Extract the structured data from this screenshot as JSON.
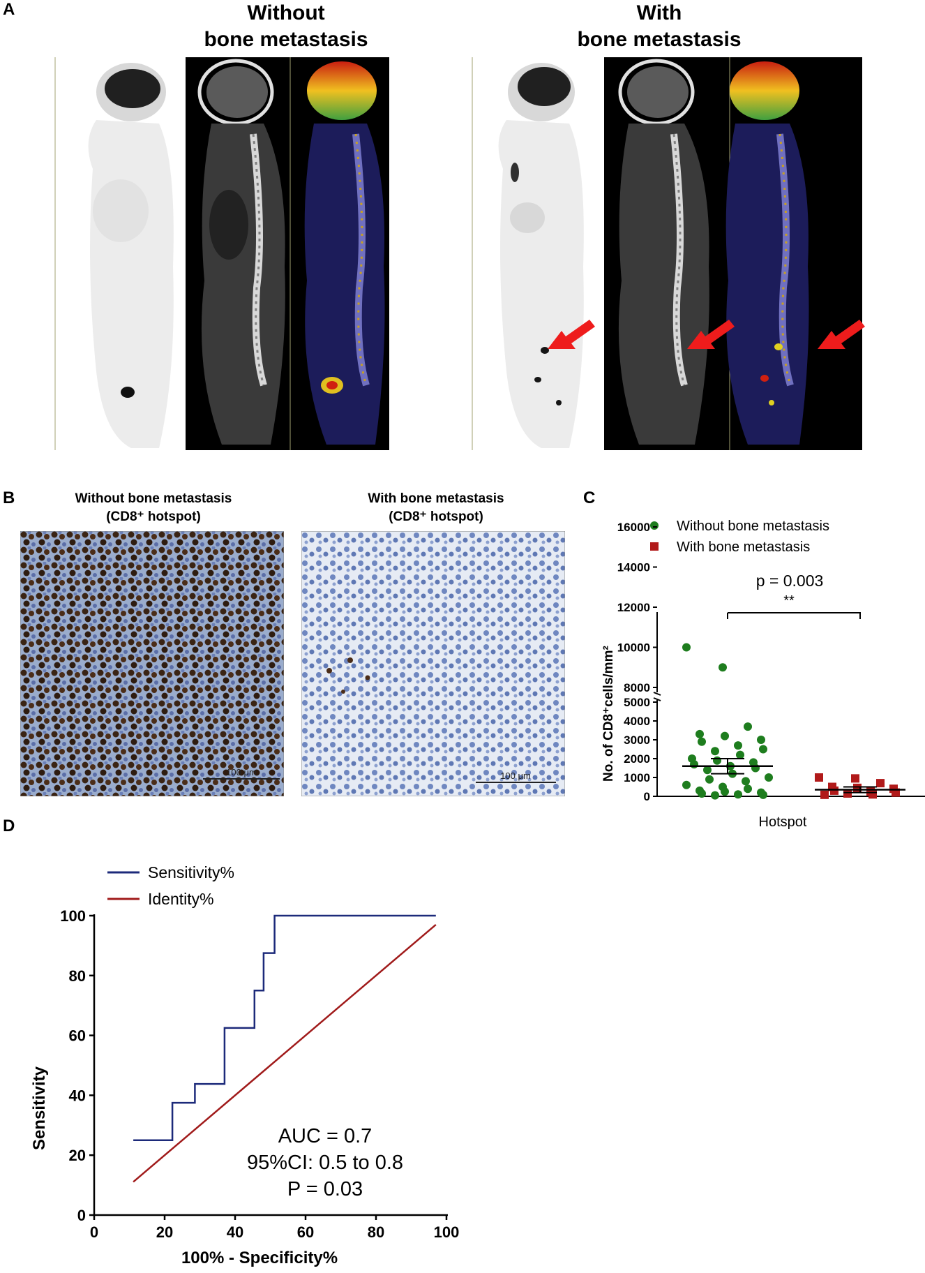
{
  "panels": {
    "a": {
      "label": "A",
      "left_title": [
        "Without",
        "bone metastasis"
      ],
      "right_title": [
        "With",
        "bone metastasis"
      ]
    },
    "b": {
      "label": "B",
      "left_title": [
        "Without bone metastasis",
        "(CD8⁺ hotspot)"
      ],
      "right_title": [
        "With bone metastasis",
        "(CD8⁺ hotspot)"
      ],
      "scale_bar": "100 μm"
    },
    "c": {
      "label": "C",
      "legend": [
        "Without bone metastasis",
        "With bone metastasis"
      ],
      "p_value": "p = 0.003",
      "sig": "**",
      "ylabel": "No. of CD8⁺cells/mm²",
      "xlabel": "Hotspot",
      "yticks_upper": [
        "16000",
        "14000",
        "12000",
        "10000",
        "8000"
      ],
      "yticks_lower": [
        "5000",
        "4000",
        "3000",
        "2000",
        "1000",
        "0"
      ]
    },
    "d": {
      "label": "D",
      "legend": [
        "Sensitivity%",
        "Identity%"
      ],
      "annotation": [
        "AUC = 0.7",
        "95%CI: 0.5 to 0.8",
        "P = 0.03"
      ],
      "xlabel": "100%  - Specificity%",
      "ylabel": "Sensitivity",
      "xticks": [
        "0",
        "20",
        "40",
        "60",
        "80",
        "100"
      ],
      "yticks": [
        "0",
        "20",
        "40",
        "60",
        "80",
        "100"
      ]
    }
  },
  "chart_data": [
    {
      "type": "scatter",
      "panel": "C",
      "xlabel": "Hotspot",
      "ylabel": "No. of CD8⁺cells/mm²",
      "ylim": [
        0,
        16000
      ],
      "axis_break": [
        5000,
        8000
      ],
      "series": [
        {
          "name": "Without bone metastasis",
          "color": "#1e7d1e",
          "marker": "circle",
          "values": [
            10000,
            9000,
            3700,
            3300,
            3200,
            3000,
            2900,
            2700,
            2500,
            2400,
            2200,
            2000,
            1900,
            1800,
            1700,
            1600,
            1500,
            1400,
            1200,
            1000,
            900,
            800,
            600,
            500,
            400,
            300,
            250,
            200,
            150,
            100,
            80,
            50
          ],
          "mean": 1600,
          "sem_range": [
            1200,
            2000
          ]
        },
        {
          "name": "With bone metastasis",
          "color": "#b11a1a",
          "marker": "square",
          "values": [
            1000,
            950,
            700,
            500,
            450,
            400,
            300,
            250,
            200,
            150,
            100,
            80
          ],
          "mean": 350,
          "sem_range": [
            200,
            500
          ]
        }
      ]
    },
    {
      "type": "line",
      "panel": "D",
      "xlabel": "100%  - Specificity%",
      "ylabel": "Sensitivity",
      "xlim": [
        0,
        100
      ],
      "ylim": [
        0,
        100
      ],
      "series": [
        {
          "name": "Sensitivity%",
          "color": "#1c2a7a",
          "x": [
            11.1,
            22.2,
            22.2,
            28.6,
            28.6,
            37.0,
            37.0,
            45.5,
            45.5,
            48.1,
            48.1,
            51.2,
            51.2,
            97.0
          ],
          "y": [
            25.0,
            25.0,
            37.5,
            37.5,
            43.8,
            43.8,
            62.5,
            62.5,
            75.0,
            75.0,
            87.5,
            87.5,
            100.0,
            100.0
          ]
        },
        {
          "name": "Identity%",
          "color": "#a01a1a",
          "x": [
            11.1,
            97.0
          ],
          "y": [
            11.1,
            97.0
          ]
        }
      ]
    }
  ]
}
